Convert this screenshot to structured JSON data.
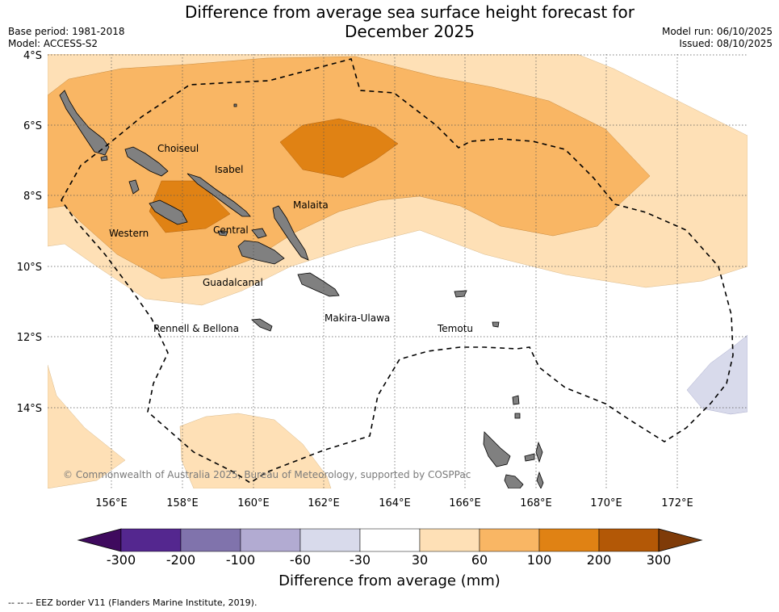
{
  "header": {
    "title_line1": "Difference from average sea surface height forecast for",
    "title_line2": "December 2025",
    "base_period": "Base period: 1981-2018",
    "model": "Model: ACCESS-S2",
    "model_run": "Model run: 06/10/2025",
    "issued": "Issued: 08/10/2025"
  },
  "map": {
    "lat_labels": [
      "4°S",
      "6°S",
      "8°S",
      "10°S",
      "12°S",
      "14°S"
    ],
    "lon_labels": [
      "156°E",
      "158°E",
      "160°E",
      "162°E",
      "164°E",
      "166°E",
      "168°E",
      "170°E",
      "172°E"
    ],
    "province_labels": [
      "Choiseul",
      "Isabel",
      "Malaita",
      "Western",
      "Central",
      "Guadalcanal",
      "Rennell & Bellona",
      "Makira-Ulawa",
      "Temotu"
    ],
    "copyright": "© Commonwealth of Australia 2025, Bureau of Meteorology, supported by COSPPac"
  },
  "colorbar": {
    "title": "Difference from average (mm)",
    "ticks": [
      "-300",
      "-200",
      "-100",
      "-60",
      "-30",
      "30",
      "60",
      "100",
      "200",
      "300"
    ],
    "colors": [
      "#3f0a5e",
      "#54278f",
      "#8073ac",
      "#b2abd2",
      "#d8daeb",
      "#ffffff",
      "#fee0b6",
      "#f9b664",
      "#e08214",
      "#b35806",
      "#7f3b08"
    ]
  },
  "footnote": "--  --  -- EEZ border V11 (Flanders Marine Institute, 2019)."
}
